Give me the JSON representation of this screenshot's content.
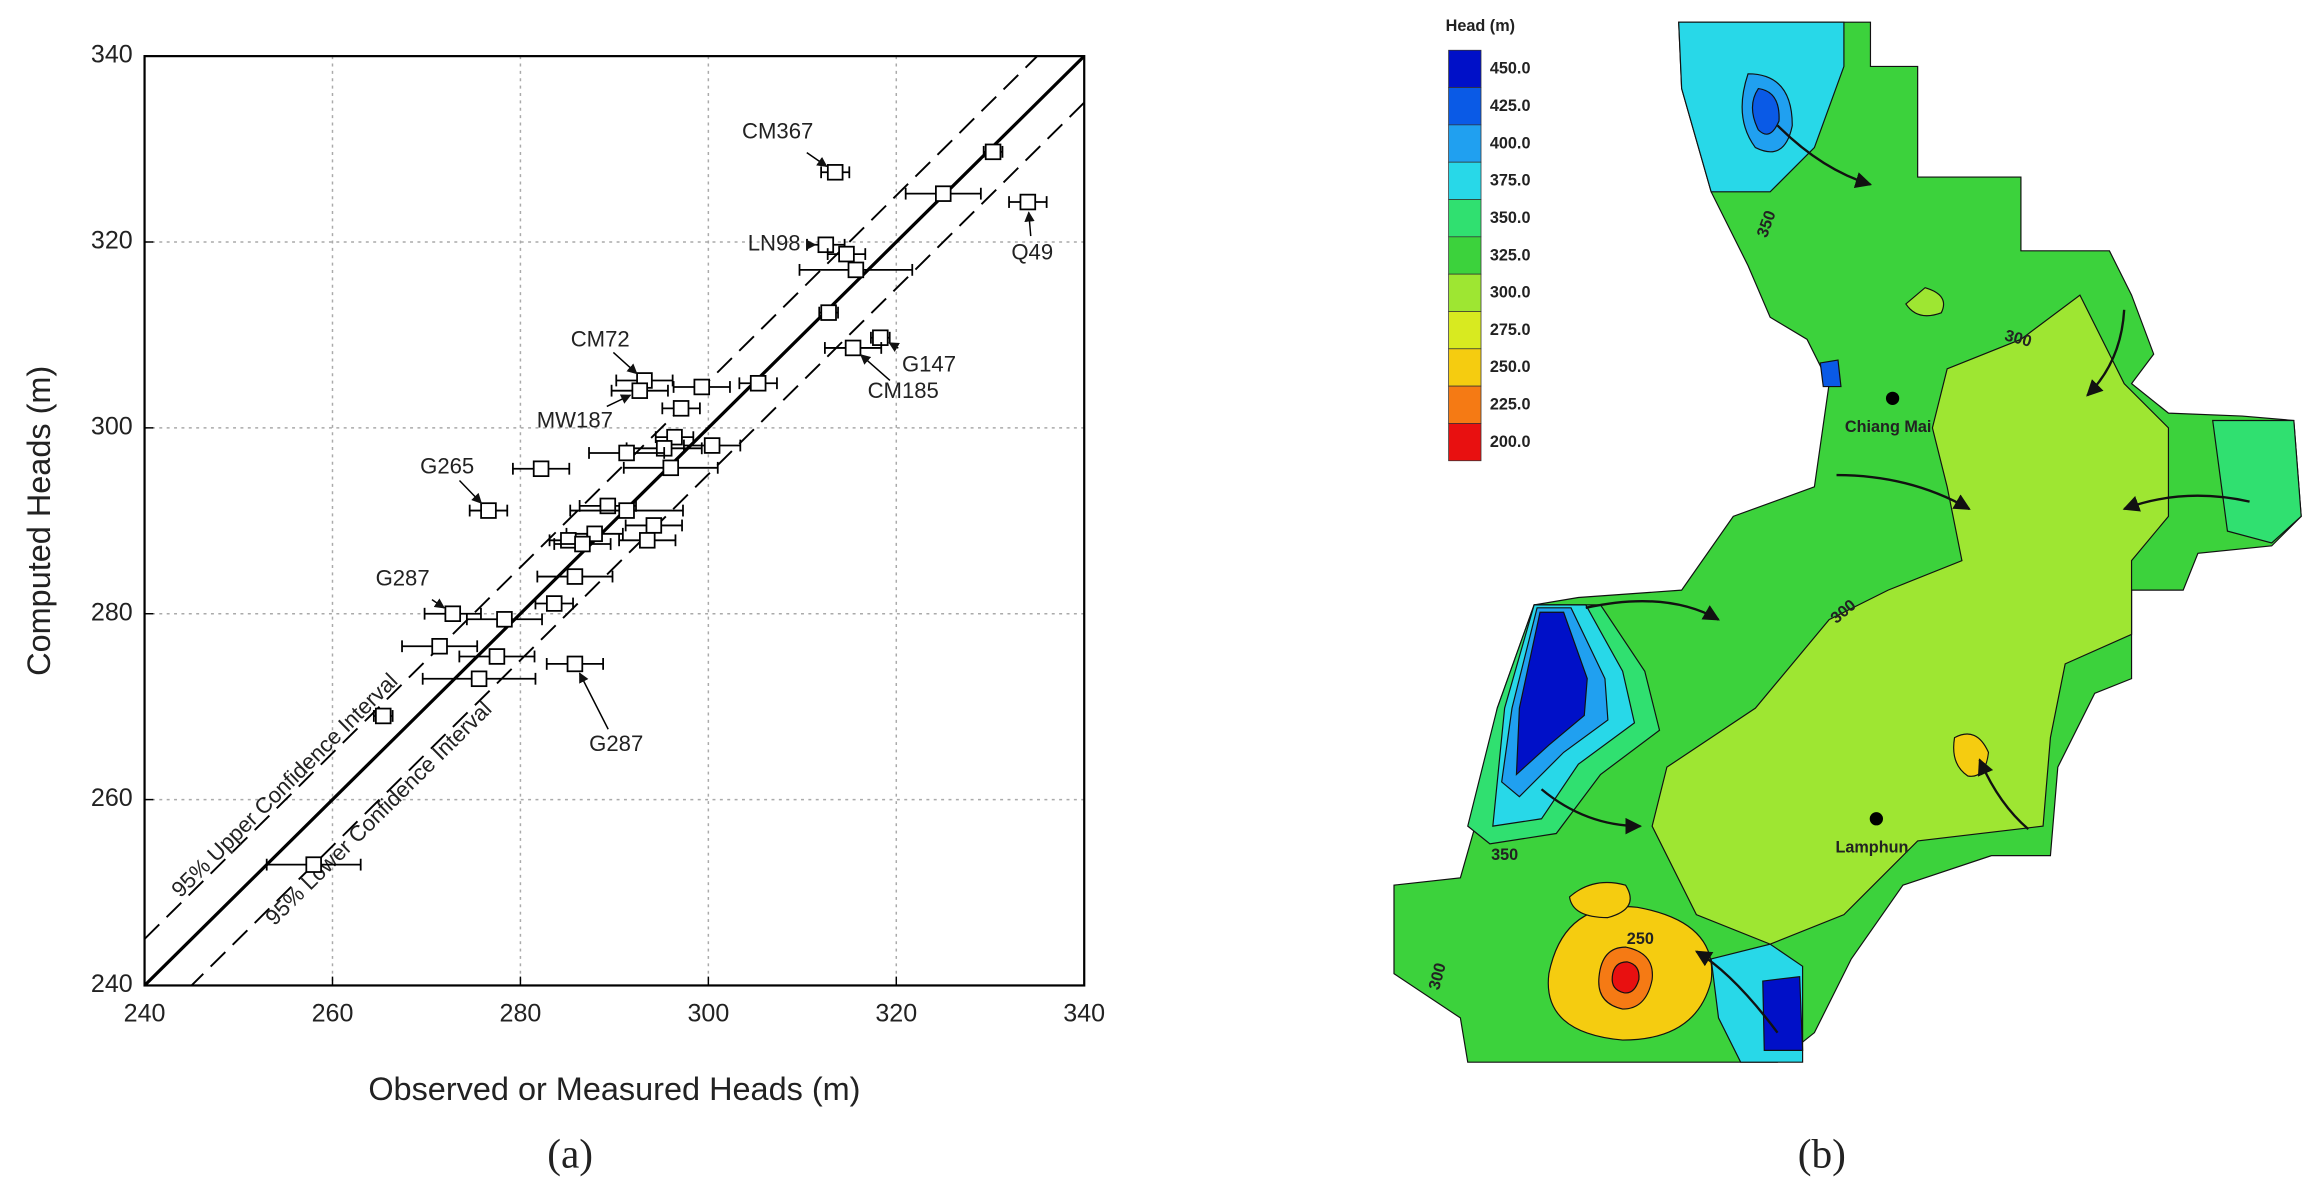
{
  "chart_data": [
    {
      "type": "scatter",
      "panel_label": "(a)",
      "xlabel": "Observed or Measured Heads (m)",
      "ylabel": "Computed Heads (m)",
      "xlim": [
        240,
        340
      ],
      "ylim": [
        240,
        340
      ],
      "xticks": [
        240,
        260,
        280,
        300,
        320,
        340
      ],
      "yticks": [
        240,
        260,
        280,
        300,
        320,
        340
      ],
      "grid": true,
      "marker": "square",
      "reference_lines": [
        {
          "offset": 0,
          "style": "solid"
        },
        {
          "offset": 5,
          "style": "dashed",
          "name": "95% Upper Confidence Interval"
        },
        {
          "offset": -5,
          "style": "dashed",
          "name": "95% Lower Confidence Interval"
        }
      ],
      "x": [
        313.5,
        330.3,
        325,
        334,
        312.5,
        314.7,
        315.7,
        312.8,
        318.3,
        315.4,
        305.3,
        299.3,
        293.2,
        292.7,
        297.1,
        296.4,
        300.4,
        295.3,
        291.3,
        296,
        282.2,
        276.6,
        289.3,
        291.3,
        294.2,
        287.9,
        285.1,
        293.5,
        286.6,
        285.8,
        283.6,
        272.8,
        278.3,
        271.4,
        277.5,
        285.8,
        275.6,
        265.4,
        258
      ],
      "y": [
        327.5,
        329.7,
        325.2,
        324.3,
        319.7,
        318.7,
        317,
        312.4,
        309.7,
        308.6,
        304.8,
        304.4,
        305.1,
        304,
        302.1,
        299,
        298.1,
        297.8,
        297.3,
        295.7,
        295.6,
        291.1,
        291.6,
        291.1,
        289.5,
        288.6,
        287.9,
        287.9,
        287.5,
        284,
        281.1,
        280,
        279.4,
        276.5,
        275.4,
        274.6,
        273,
        269,
        253
      ],
      "xerr": [
        1.5,
        1,
        4,
        2,
        2,
        2,
        6,
        1,
        1,
        3,
        2,
        3,
        3,
        3,
        2,
        2,
        3,
        4,
        4,
        5,
        3,
        2,
        3,
        6,
        3,
        3,
        2,
        3,
        3,
        4,
        2,
        3,
        4,
        4,
        4,
        3,
        6,
        1,
        5
      ],
      "labels": [
        "CM367",
        null,
        null,
        "Q49",
        "LN98",
        null,
        null,
        null,
        "G147",
        "CM185",
        null,
        null,
        "CM72",
        "MW187",
        null,
        null,
        null,
        null,
        null,
        null,
        null,
        "G265",
        null,
        null,
        null,
        null,
        null,
        null,
        null,
        null,
        null,
        "G287",
        null,
        null,
        null,
        "G287",
        null,
        null,
        null
      ]
    },
    {
      "type": "contour",
      "panel_label": "(b)",
      "legend_title": "Head (m)",
      "levels": [
        {
          "value": 450,
          "label": "450.0",
          "color": "#0010c8"
        },
        {
          "value": 425,
          "label": "425.0",
          "color": "#0a5ae6"
        },
        {
          "value": 400,
          "label": "400.0",
          "color": "#20a0f0"
        },
        {
          "value": 375,
          "label": "375.0",
          "color": "#28d8e8"
        },
        {
          "value": 350,
          "label": "350.0",
          "color": "#30e070"
        },
        {
          "value": 325,
          "label": "325.0",
          "color": "#3cd23c"
        },
        {
          "value": 300,
          "label": "300.0",
          "color": "#9ee632"
        },
        {
          "value": 275,
          "label": "275.0",
          "color": "#d8ea20"
        },
        {
          "value": 250,
          "label": "250.0",
          "color": "#f5cc10"
        },
        {
          "value": 225,
          "label": "225.0",
          "color": "#f57a14"
        },
        {
          "value": 200,
          "label": "200.0",
          "color": "#e81010"
        }
      ],
      "places": [
        "Chiang Mai",
        "Lamphun"
      ],
      "contour_labels": [
        350,
        300,
        300,
        350,
        250,
        300
      ]
    }
  ]
}
